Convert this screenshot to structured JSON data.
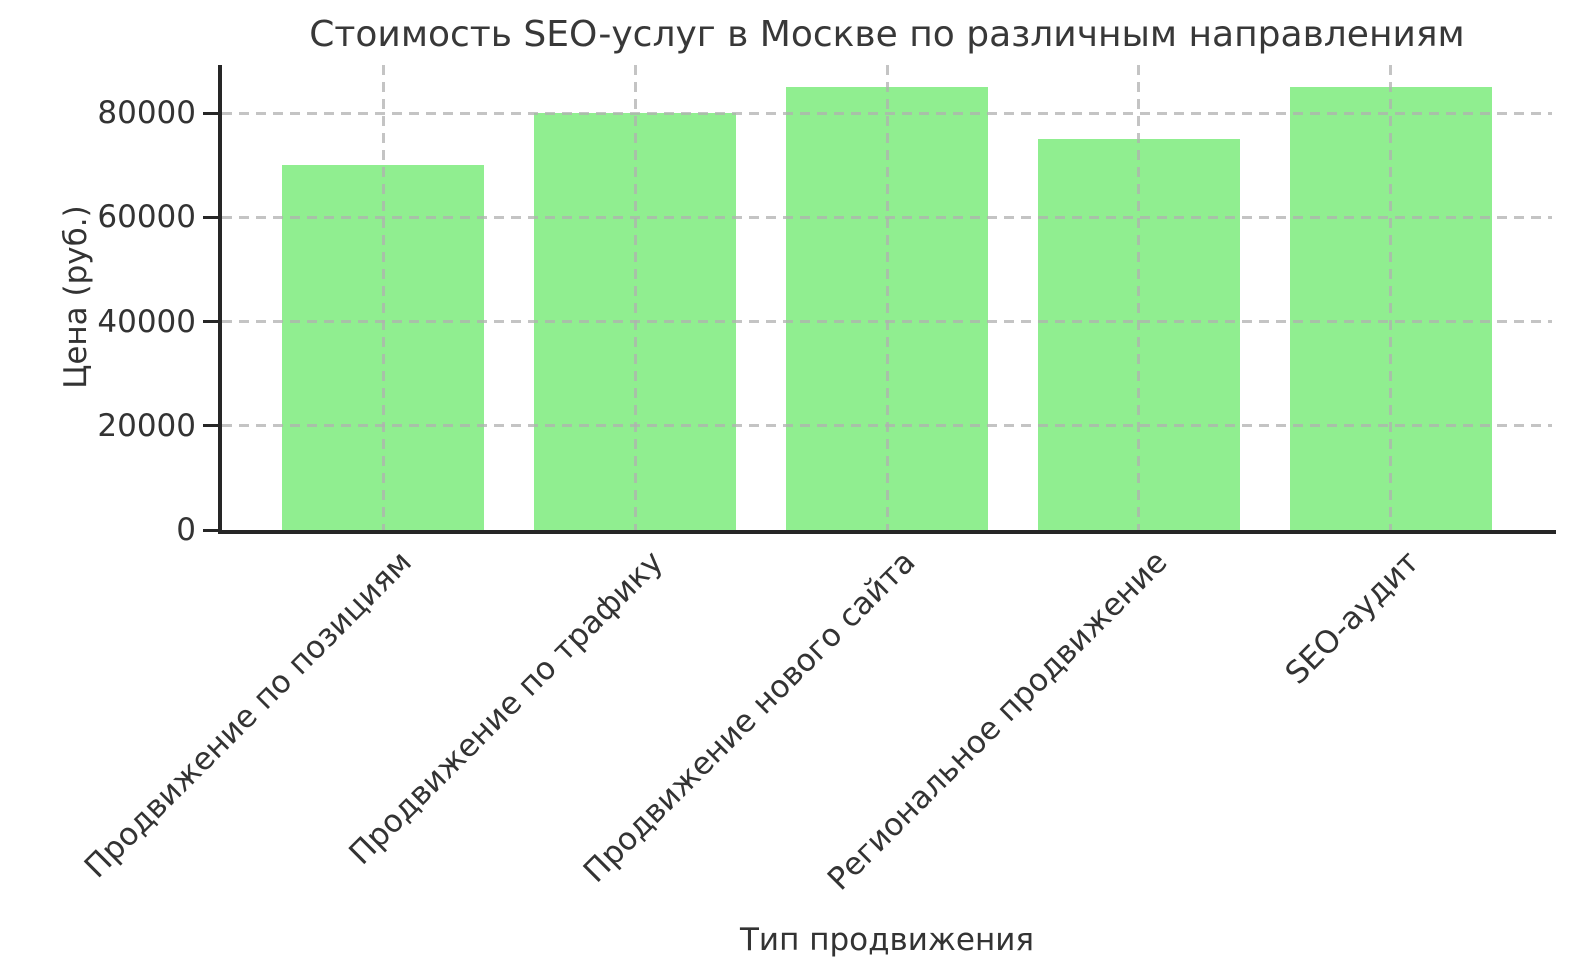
{
  "chart_data": {
    "type": "bar",
    "title": "Стоимость SEO-услуг в Москве по различным направлениям",
    "xlabel": "Тип продвижения",
    "ylabel": "Цена (руб.)",
    "categories": [
      "Продвижение по позициям",
      "Продвижение по трафику",
      "Продвижение нового сайта",
      "Региональное продвижение",
      "SEO-аудит"
    ],
    "values": [
      70000,
      80000,
      85000,
      75000,
      85000
    ],
    "yticks": [
      0,
      20000,
      40000,
      60000,
      80000
    ],
    "ylim": [
      0,
      89250
    ],
    "grid": "dashed-both-axes-above-bars",
    "legend": "none",
    "bar_color": "#90EE90",
    "grid_color": "#b0b0b0",
    "axis_color": "#262626",
    "text_color": "#333333"
  }
}
